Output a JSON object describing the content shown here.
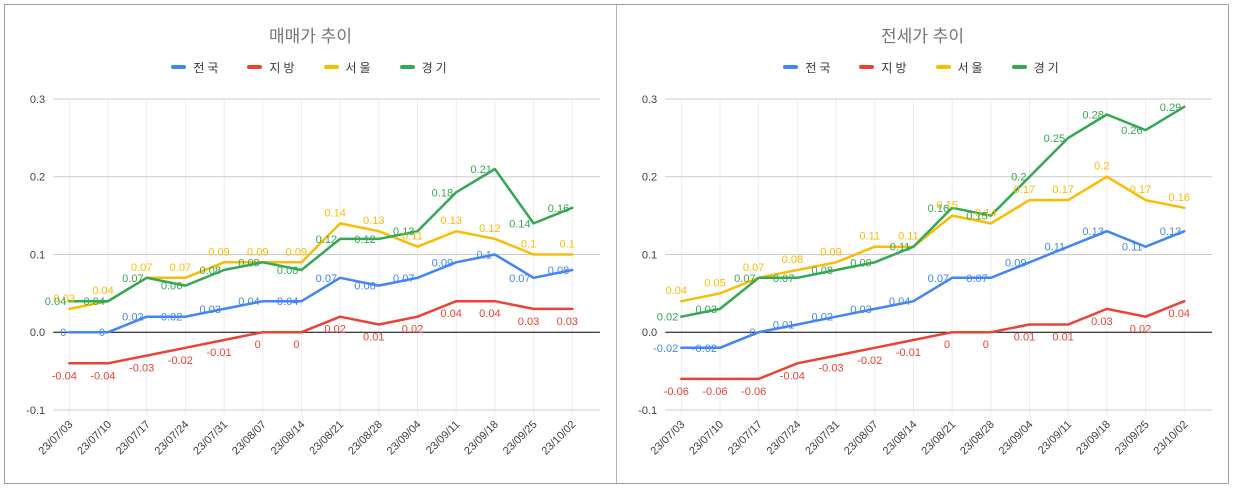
{
  "frame": {
    "background": "#ffffff",
    "border_color": "#9e9e9e",
    "divider_color": "#b3b3b3",
    "grid_color": "#cccccc",
    "category_grid_color": "#ededed",
    "zero_axis_color": "#000000",
    "axis_text_color": "#424242",
    "title_color": "#757575"
  },
  "chart_data": [
    {
      "type": "line",
      "title": "매매가 추이",
      "legend_position": "top",
      "grid": true,
      "point_labels": true,
      "categories": [
        "23/07/03",
        "23/07/10",
        "23/07/17",
        "23/07/24",
        "23/07/31",
        "23/08/07",
        "23/08/14",
        "23/08/21",
        "23/08/28",
        "23/09/04",
        "23/09/11",
        "23/09/18",
        "23/09/25",
        "23/10/02"
      ],
      "ylim": [
        -0.1,
        0.3
      ],
      "yticks": {
        "values": [
          0.3,
          0.2,
          0.1,
          0,
          -0.1
        ],
        "labels": [
          "0.3",
          "0.2",
          "0.1",
          "0.0",
          "-0.1"
        ]
      },
      "series": [
        {
          "key": "nationwide",
          "name": "전국",
          "color": "#4285F4",
          "values": [
            0,
            0,
            0.02,
            0.02,
            0.03,
            0.04,
            0.04,
            0.07,
            0.06,
            0.07,
            0.09,
            0.1,
            0.07,
            0.08
          ]
        },
        {
          "key": "provinces",
          "name": "지방",
          "color": "#EA4335",
          "values": [
            -0.04,
            -0.04,
            -0.03,
            -0.02,
            -0.01,
            0,
            0,
            0.02,
            0.01,
            0.02,
            0.04,
            0.04,
            0.03,
            0.03
          ]
        },
        {
          "key": "seoul",
          "name": "서울",
          "color": "#FBBC04",
          "values": [
            0.03,
            0.04,
            0.07,
            0.07,
            0.09,
            0.09,
            0.09,
            0.14,
            0.13,
            0.11,
            0.13,
            0.12,
            0.1,
            0.1
          ]
        },
        {
          "key": "gyeonggi",
          "name": "경기",
          "color": "#34A853",
          "values": [
            0.04,
            0.04,
            0.07,
            0.06,
            0.08,
            0.09,
            0.08,
            0.12,
            0.12,
            0.13,
            0.18,
            0.21,
            0.14,
            0.16
          ]
        }
      ]
    },
    {
      "type": "line",
      "title": "전세가 추이",
      "legend_position": "top",
      "grid": true,
      "point_labels": true,
      "categories": [
        "23/07/03",
        "23/07/10",
        "23/07/17",
        "23/07/24",
        "23/07/31",
        "23/08/07",
        "23/08/14",
        "23/08/21",
        "23/08/28",
        "23/09/04",
        "23/09/11",
        "23/09/18",
        "23/09/25",
        "23/10/02"
      ],
      "ylim": [
        -0.1,
        0.3
      ],
      "yticks": {
        "values": [
          0.3,
          0.2,
          0.1,
          0,
          -0.1
        ],
        "labels": [
          "0.3",
          "0.2",
          "0.1",
          "0.0",
          "-0.1"
        ]
      },
      "series": [
        {
          "key": "nationwide",
          "name": "전국",
          "color": "#4285F4",
          "values": [
            -0.02,
            -0.02,
            0,
            0.01,
            0.02,
            0.03,
            0.04,
            0.07,
            0.07,
            0.09,
            0.11,
            0.13,
            0.11,
            0.13
          ]
        },
        {
          "key": "provinces",
          "name": "지방",
          "color": "#EA4335",
          "values": [
            -0.06,
            -0.06,
            -0.06,
            -0.04,
            -0.03,
            -0.02,
            -0.01,
            0,
            0,
            0.01,
            0.01,
            0.03,
            0.02,
            0.04
          ]
        },
        {
          "key": "seoul",
          "name": "서울",
          "color": "#FBBC04",
          "values": [
            0.04,
            0.05,
            0.07,
            0.08,
            0.09,
            0.11,
            0.11,
            0.15,
            0.14,
            0.17,
            0.17,
            0.2,
            0.17,
            0.16
          ]
        },
        {
          "key": "gyeonggi",
          "name": "경기",
          "color": "#34A853",
          "values": [
            0.02,
            0.03,
            0.07,
            0.07,
            0.08,
            0.09,
            0.11,
            0.16,
            0.15,
            0.2,
            0.25,
            0.28,
            0.26,
            0.29
          ]
        }
      ]
    }
  ]
}
